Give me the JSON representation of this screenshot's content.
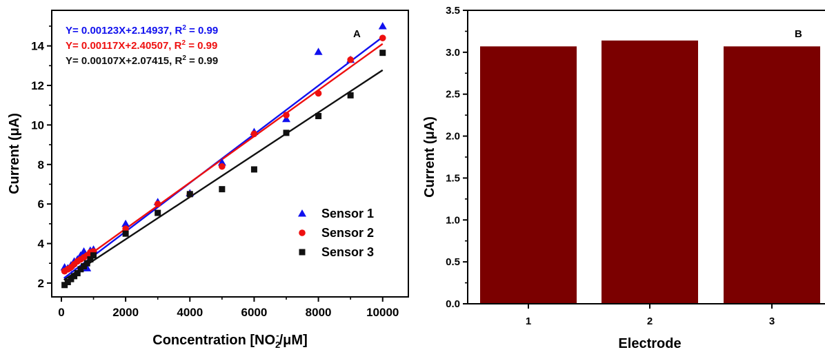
{
  "chart_data": [
    {
      "type": "scatter",
      "panel_label": "A",
      "xlabel": "Concentration [NO",
      "xlabel_sub": "2",
      "xlabel_sup": "-",
      "xlabel_end": "/μM]",
      "ylabel": "Current (μA)",
      "xlim": [
        -300,
        10800
      ],
      "ylim": [
        1.3,
        15.8
      ],
      "xticks": [
        0,
        2000,
        4000,
        6000,
        8000,
        10000
      ],
      "yticks": [
        2,
        4,
        6,
        8,
        10,
        12,
        14
      ],
      "grid": false,
      "legend_position": "bottom-right",
      "equations": [
        {
          "pre": "Y= 0.00123X+2.14937, R",
          "sup": "2",
          "post": " = 0.99",
          "color": "#1010ee"
        },
        {
          "pre": "Y= 0.00117X+2.40507, R",
          "sup": "2",
          "post": " = 0.99",
          "color": "#ee1010"
        },
        {
          "pre": "Y= 0.00107X+2.07415, R",
          "sup": "2",
          "post": " = 0.99",
          "color": "#111111"
        }
      ],
      "series": [
        {
          "name": "Sensor 1",
          "marker": "triangle",
          "color": "#1010ee",
          "fit": {
            "slope": 0.00123,
            "intercept": 2.14937
          },
          "x": [
            100,
            200,
            300,
            400,
            500,
            600,
            700,
            800,
            900,
            1000,
            2000,
            3000,
            4000,
            5000,
            6000,
            7000,
            8000,
            9000,
            10000
          ],
          "y": [
            2.8,
            2.75,
            2.9,
            3.1,
            3.2,
            3.4,
            3.6,
            2.75,
            3.65,
            3.7,
            5.0,
            6.1,
            6.55,
            8.1,
            9.65,
            10.3,
            13.7,
            13.3,
            15.0
          ]
        },
        {
          "name": "Sensor 2",
          "marker": "circle",
          "color": "#ee1010",
          "fit": {
            "slope": 0.00117,
            "intercept": 2.40507
          },
          "x": [
            100,
            200,
            300,
            400,
            500,
            600,
            700,
            800,
            900,
            1000,
            2000,
            3000,
            4000,
            5000,
            6000,
            7000,
            8000,
            9000,
            10000
          ],
          "y": [
            2.6,
            2.7,
            2.8,
            2.95,
            3.1,
            3.2,
            3.3,
            3.4,
            3.55,
            3.6,
            4.75,
            6.0,
            6.5,
            7.9,
            9.55,
            10.5,
            11.6,
            13.3,
            14.4
          ]
        },
        {
          "name": "Sensor 3",
          "marker": "square",
          "color": "#111111",
          "fit": {
            "slope": 0.00107,
            "intercept": 2.07415
          },
          "x": [
            100,
            200,
            300,
            400,
            500,
            600,
            700,
            800,
            900,
            1000,
            2000,
            3000,
            4000,
            5000,
            6000,
            7000,
            8000,
            9000,
            10000
          ],
          "y": [
            1.9,
            2.05,
            2.2,
            2.35,
            2.5,
            2.7,
            2.85,
            3.0,
            3.2,
            3.4,
            4.5,
            5.55,
            6.5,
            6.75,
            7.75,
            9.6,
            10.45,
            11.5,
            13.65
          ]
        }
      ]
    },
    {
      "type": "bar",
      "panel_label": "B",
      "xlabel": "Electrode",
      "ylabel": "Current (μA)",
      "ylim": [
        0,
        3.5
      ],
      "yticks": [
        0.0,
        0.5,
        1.0,
        1.5,
        2.0,
        2.5,
        3.0,
        3.5
      ],
      "grid": false,
      "categories": [
        "1",
        "2",
        "3"
      ],
      "values": [
        3.07,
        3.14,
        3.07
      ],
      "bar_color": "#7b0000"
    }
  ]
}
